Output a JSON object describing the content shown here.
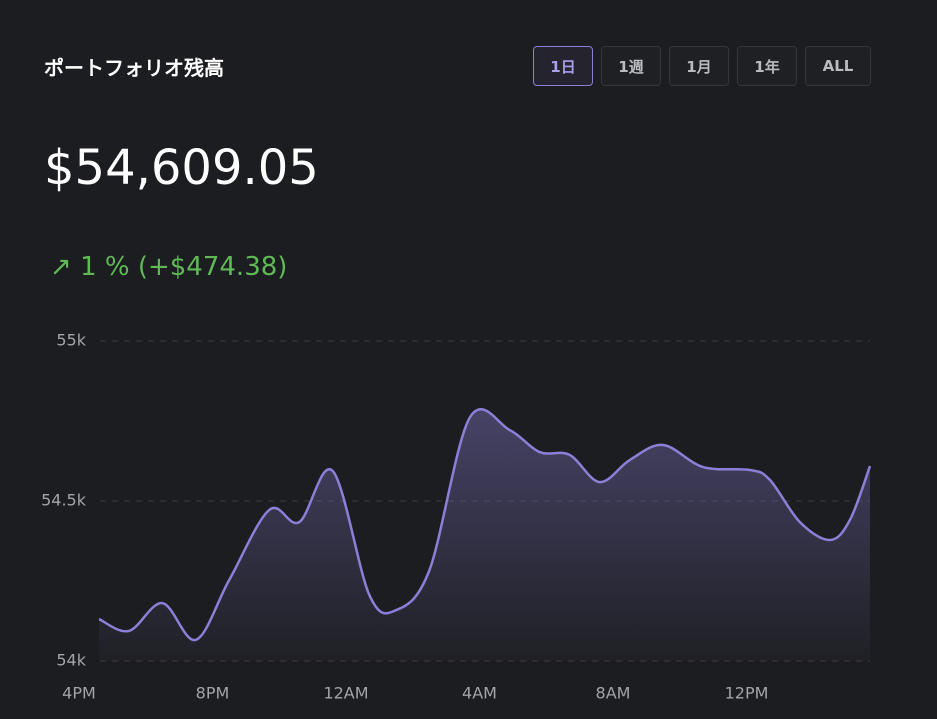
{
  "header": {
    "title": "ポートフォリオ残高",
    "ranges": [
      "1日",
      "1週",
      "1月",
      "1年",
      "ALL"
    ],
    "active_range": 0
  },
  "balance": "$54,609.05",
  "change": {
    "arrow": "↗",
    "text": "1 % (+$474.38)"
  },
  "chart_data": {
    "type": "area",
    "color": "#8b80d8",
    "x": [
      0.6,
      1.5,
      2.5,
      3.5,
      4.5,
      5.7,
      6.6,
      7.6,
      8.7,
      9.5,
      10.5,
      11.7,
      12.9,
      13.8,
      14.7,
      15.6,
      16.5,
      17.5,
      18.7,
      20.1,
      20.7,
      21.6,
      22.5,
      23.1,
      23.7
    ],
    "values": [
      54131,
      54094,
      54181,
      54066,
      54253,
      54472,
      54434,
      54594,
      54206,
      54159,
      54284,
      54759,
      54722,
      54653,
      54644,
      54559,
      54628,
      54675,
      54606,
      54597,
      54566,
      54434,
      54378,
      54441,
      54609
    ],
    "xlim": [
      0,
      23.7
    ],
    "xticks": [
      {
        "value": 0,
        "label": "4PM"
      },
      {
        "value": 4,
        "label": "8PM"
      },
      {
        "value": 8,
        "label": "12AM"
      },
      {
        "value": 12,
        "label": "4AM"
      },
      {
        "value": 16,
        "label": "8AM"
      },
      {
        "value": 20,
        "label": "12PM"
      }
    ],
    "ylim": [
      54000,
      55000
    ],
    "yticks": [
      {
        "value": 54000,
        "label": "54k"
      },
      {
        "value": 54500,
        "label": "54.5k"
      },
      {
        "value": 55000,
        "label": "55k"
      }
    ],
    "grid": true
  }
}
